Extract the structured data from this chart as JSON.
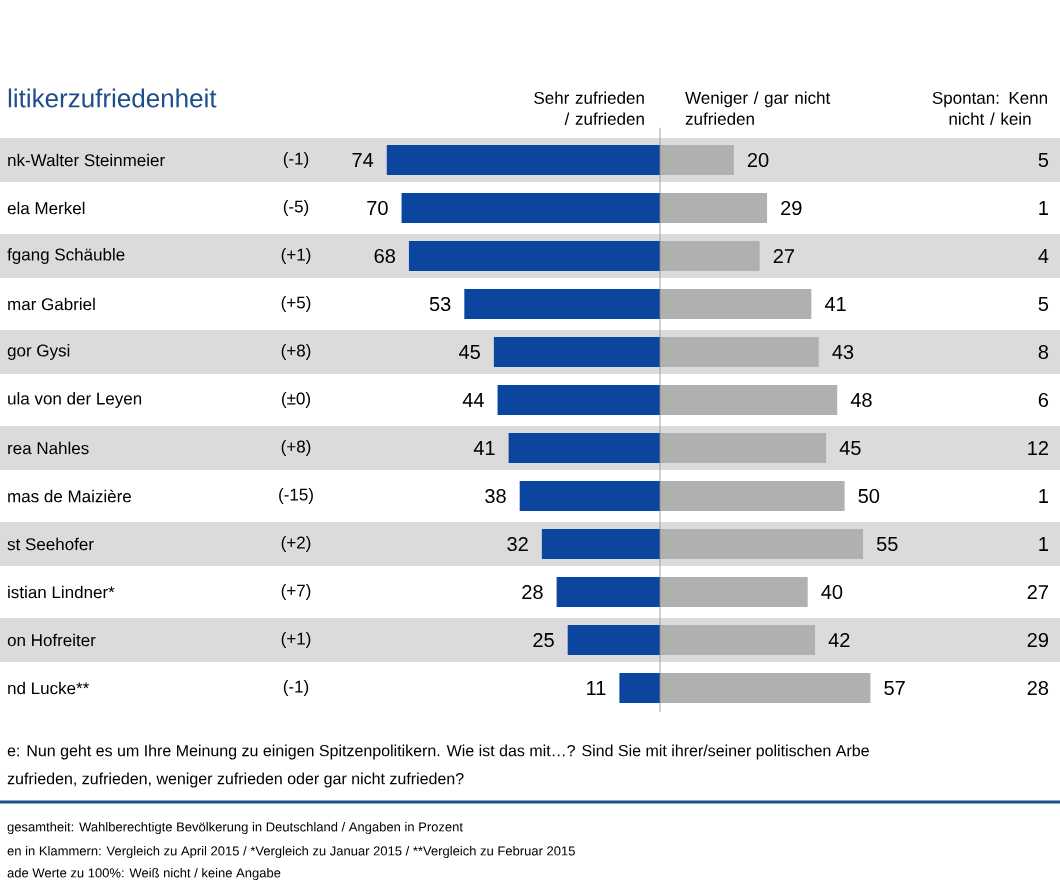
{
  "chart_data": [
    {
      "type": "bar",
      "orientation": "horizontal",
      "subtitle": "litikerzufriedenheit",
      "categories": [
        "nk-Walter Steinmeier",
        "ela Merkel",
        "fgang Schäuble",
        "mar Gabriel",
        "gor Gysi",
        "ula von der Leyen",
        "rea Nahles",
        "mas de Maizière",
        "st Seehofer",
        "istian Lindner*",
        "on Hofreiter",
        "nd Lucke**"
      ],
      "series": [
        {
          "name": "Sehr zufrieden / zufrieden",
          "color": "#0a46a0",
          "values": [
            74,
            70,
            68,
            53,
            45,
            44,
            41,
            38,
            32,
            28,
            25,
            11
          ]
        }
      ],
      "data_labels": true,
      "annotations": [
        "e: Nun geht es um Ihre Meinung zu einigen Spitzenpolitikern. Wie ist das mit…? Sind Sie mit ihrer/seiner politischen Arbe",
        "zufrieden, zufrieden, weniger zufrieden oder gar nicht zufrieden?",
        "gesamtheit: Wahlberechtigte Bevölkerung in Deutschland / Angaben in Prozent",
        "en in Klammern: Vergleich zu April 2015 / *Vergleich zu Januar 2015 / **Vergleich zu Februar 2015",
        "ade Werte zu 100%: Weiß nicht / keine Angabe"
      ]
    },
    {
      "type": "other",
      "annotations": [
        "(-1)",
        "(-5)",
        "(+1)",
        "(+5)",
        "(+8)",
        "(±0)",
        "(+8)",
        "(-15)",
        "(+2)",
        "(+7)",
        "(+1)",
        "(-1)"
      ]
    },
    {
      "type": "bar",
      "orientation": "horizontal",
      "categories": [
        null,
        null,
        null,
        null,
        null,
        null,
        null,
        null,
        null,
        null,
        null,
        null
      ],
      "series": [
        {
          "name": "Weniger / gar nicht zufrieden",
          "color": "#b0b0b0",
          "values": [
            20,
            29,
            27,
            41,
            43,
            48,
            45,
            50,
            55,
            40,
            42,
            57
          ]
        }
      ],
      "data_labels": true
    },
    {
      "type": "other",
      "title": "Spontan: Kenn nicht / kein",
      "annotations": [
        "5",
        "1",
        "4",
        "5",
        "8",
        "6",
        "12",
        "1",
        "1",
        "27",
        "29",
        "28"
      ]
    }
  ]
}
